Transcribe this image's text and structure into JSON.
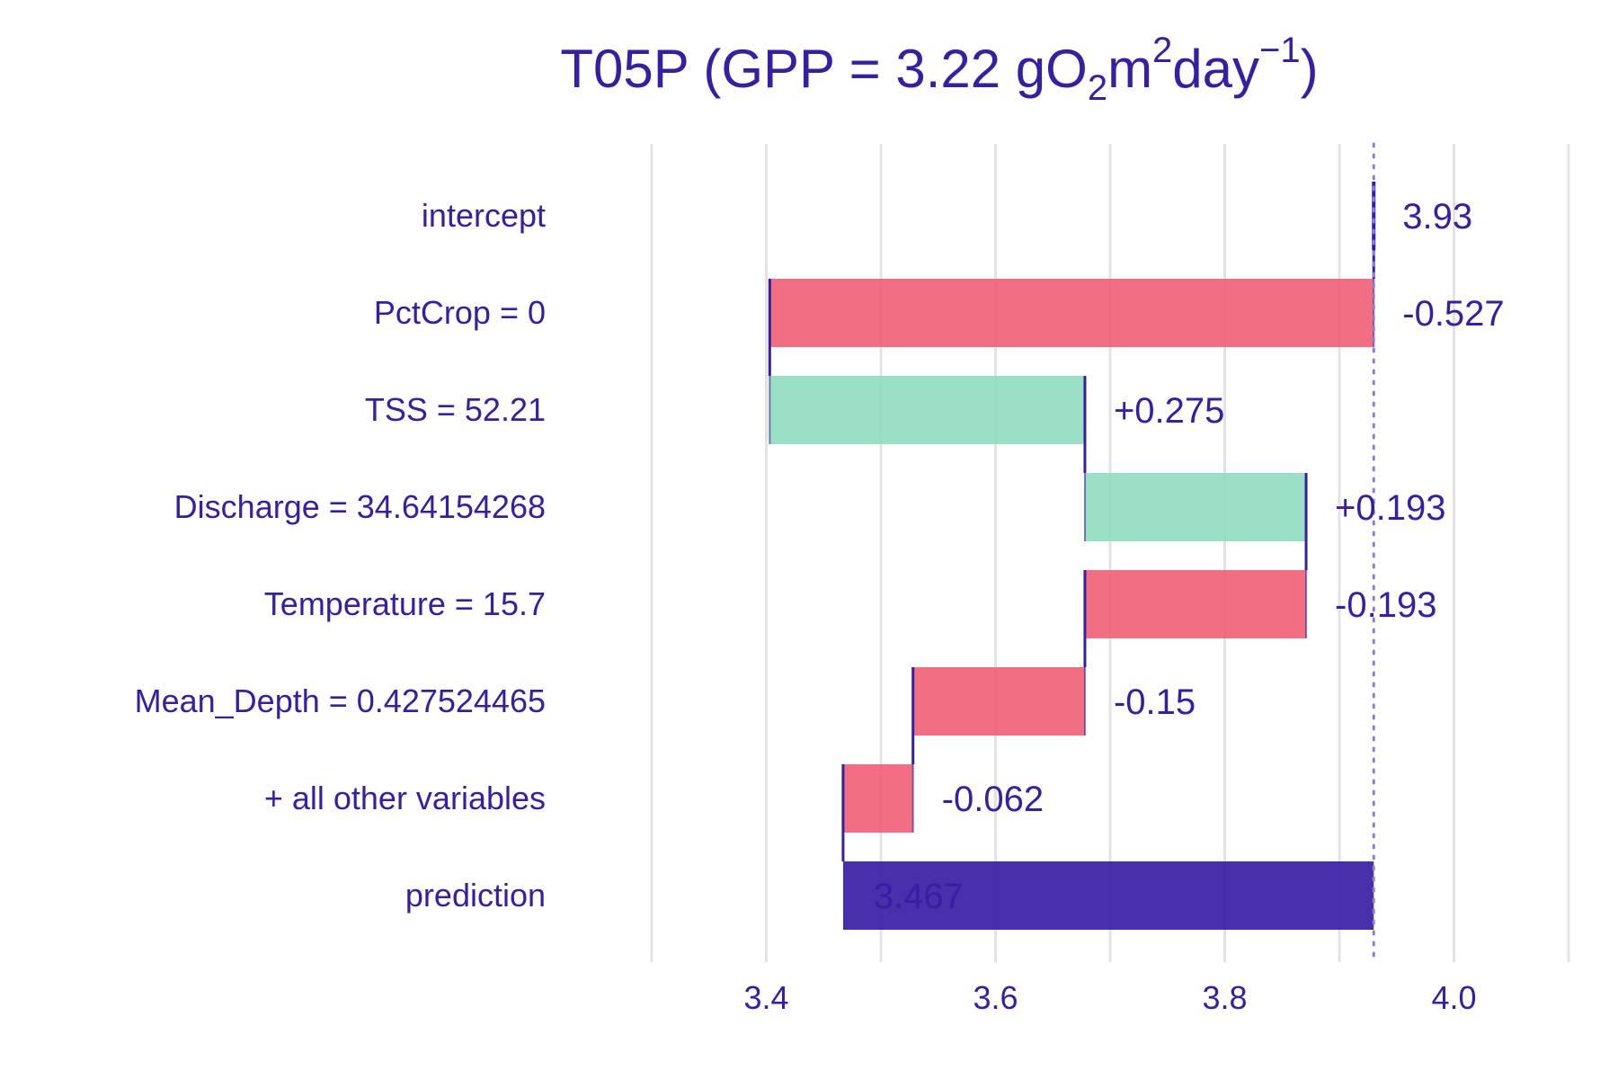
{
  "chart_data": {
    "type": "waterfall",
    "title": {
      "prefix": "T05P (GPP = 3.22 gO",
      "sub": "2",
      "mid": "m",
      "sup1": "2",
      "day": "day",
      "sup2": "−1",
      "suffix": ")"
    },
    "xlim": [
      3.3,
      4.1
    ],
    "ticks": [
      3.4,
      3.6,
      3.8,
      4.0
    ],
    "tick_labels": [
      "3.4",
      "3.6",
      "3.8",
      "4.0"
    ],
    "grid": true,
    "baseline": 3.93,
    "rows": [
      {
        "variable": "intercept",
        "start": 3.93,
        "end": 3.93,
        "contribution": 3.93,
        "label": "3.93",
        "kind": "intercept"
      },
      {
        "variable": "PctCrop = 0",
        "start": 3.93,
        "end": 3.403,
        "contribution": -0.527,
        "label": "-0.527",
        "kind": "negative"
      },
      {
        "variable": "TSS = 52.21",
        "start": 3.403,
        "end": 3.678,
        "contribution": 0.275,
        "label": "+0.275",
        "kind": "positive"
      },
      {
        "variable": "Discharge = 34.64154268",
        "start": 3.678,
        "end": 3.871,
        "contribution": 0.193,
        "label": "+0.193",
        "kind": "positive"
      },
      {
        "variable": "Temperature = 15.7",
        "start": 3.871,
        "end": 3.678,
        "contribution": -0.193,
        "label": "-0.193",
        "kind": "negative"
      },
      {
        "variable": "Mean_Depth = 0.427524465",
        "start": 3.678,
        "end": 3.528,
        "contribution": -0.15,
        "label": "-0.15",
        "kind": "negative"
      },
      {
        "variable": "+ all other variables",
        "start": 3.528,
        "end": 3.467,
        "contribution": -0.062,
        "label": "-0.062",
        "kind": "negative"
      },
      {
        "variable": "prediction",
        "start": 3.93,
        "end": 3.467,
        "contribution": 3.467,
        "label": "3.467",
        "kind": "prediction"
      }
    ],
    "colors": {
      "positive": "#8bdcbe",
      "negative": "#f05a71",
      "prediction": "#371ea3",
      "text": "#371ea3",
      "grid": "#e3e3e3",
      "baseline": "#8a7fd1"
    }
  }
}
